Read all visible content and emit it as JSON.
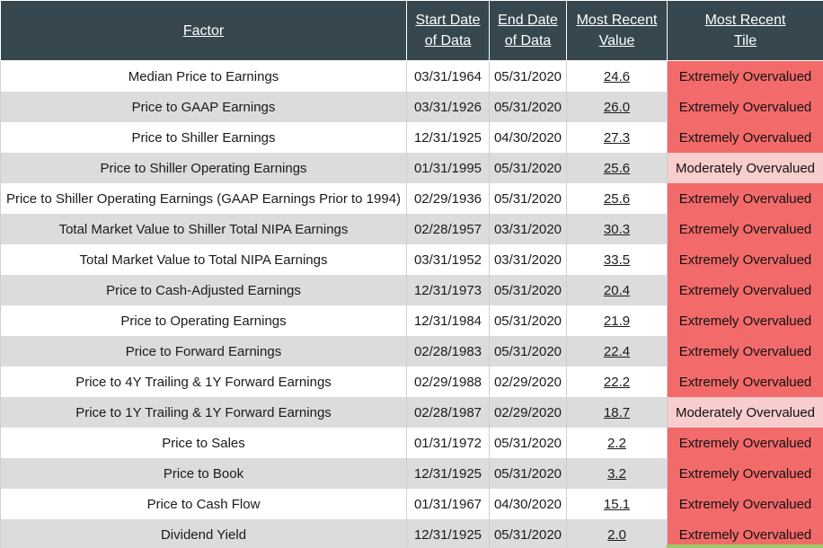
{
  "header": {
    "factor": "Factor",
    "start_l1": "Start Date",
    "start_l2": "of Data",
    "end_l1": "End Date",
    "end_l2": "of Data",
    "value_l1": "Most Recent",
    "value_l2": "Value",
    "tile_l1": "Most Recent",
    "tile_l2": "Tile"
  },
  "colors": {
    "header_bg": "#36474f",
    "extreme": "#f36a6a",
    "moderate": "#f7cdcd",
    "alt_row": "#dcdcdc"
  },
  "rows": [
    {
      "factor": "Median Price to Earnings",
      "start": "03/31/1964",
      "end": "05/31/2020",
      "value": "24.6",
      "tile": "Extremely Overvalued",
      "level": "extreme"
    },
    {
      "factor": "Price to GAAP Earnings",
      "start": "03/31/1926",
      "end": "05/31/2020",
      "value": "26.0",
      "tile": "Extremely Overvalued",
      "level": "extreme"
    },
    {
      "factor": "Price to Shiller Earnings",
      "start": "12/31/1925",
      "end": "04/30/2020",
      "value": "27.3",
      "tile": "Extremely Overvalued",
      "level": "extreme"
    },
    {
      "factor": "Price to Shiller Operating Earnings",
      "start": "01/31/1995",
      "end": "05/31/2020",
      "value": "25.6",
      "tile": "Moderately Overvalued",
      "level": "moderate"
    },
    {
      "factor": "Price to Shiller Operating Earnings (GAAP Earnings Prior to 1994)",
      "start": "02/29/1936",
      "end": "05/31/2020",
      "value": "25.6",
      "tile": "Extremely Overvalued",
      "level": "extreme"
    },
    {
      "factor": "Total Market Value to Shiller Total NIPA Earnings",
      "start": "02/28/1957",
      "end": "03/31/2020",
      "value": "30.3",
      "tile": "Extremely Overvalued",
      "level": "extreme"
    },
    {
      "factor": "Total Market Value to Total NIPA Earnings",
      "start": "03/31/1952",
      "end": "03/31/2020",
      "value": "33.5",
      "tile": "Extremely Overvalued",
      "level": "extreme"
    },
    {
      "factor": "Price to Cash-Adjusted Earnings",
      "start": "12/31/1973",
      "end": "05/31/2020",
      "value": "20.4",
      "tile": "Extremely Overvalued",
      "level": "extreme"
    },
    {
      "factor": "Price to Operating Earnings",
      "start": "12/31/1984",
      "end": "05/31/2020",
      "value": "21.9",
      "tile": "Extremely Overvalued",
      "level": "extreme"
    },
    {
      "factor": "Price to Forward Earnings",
      "start": "02/28/1983",
      "end": "05/31/2020",
      "value": "22.4",
      "tile": "Extremely Overvalued",
      "level": "extreme"
    },
    {
      "factor": "Price to 4Y Trailing & 1Y Forward Earnings",
      "start": "02/29/1988",
      "end": "02/29/2020",
      "value": "22.2",
      "tile": "Extremely Overvalued",
      "level": "extreme"
    },
    {
      "factor": "Price to 1Y Trailing & 1Y Forward Earnings",
      "start": "02/28/1987",
      "end": "02/29/2020",
      "value": "18.7",
      "tile": "Moderately Overvalued",
      "level": "moderate"
    },
    {
      "factor": "Price to Sales",
      "start": "01/31/1972",
      "end": "05/31/2020",
      "value": "2.2",
      "tile": "Extremely Overvalued",
      "level": "extreme"
    },
    {
      "factor": "Price to Book",
      "start": "12/31/1925",
      "end": "05/31/2020",
      "value": "3.2",
      "tile": "Extremely Overvalued",
      "level": "extreme"
    },
    {
      "factor": "Price to Cash Flow",
      "start": "01/31/1967",
      "end": "04/30/2020",
      "value": "15.1",
      "tile": "Extremely Overvalued",
      "level": "extreme"
    },
    {
      "factor": "Dividend Yield",
      "start": "12/31/1925",
      "end": "05/31/2020",
      "value": "2.0",
      "tile": "Extremely Overvalued",
      "level": "extreme"
    }
  ]
}
